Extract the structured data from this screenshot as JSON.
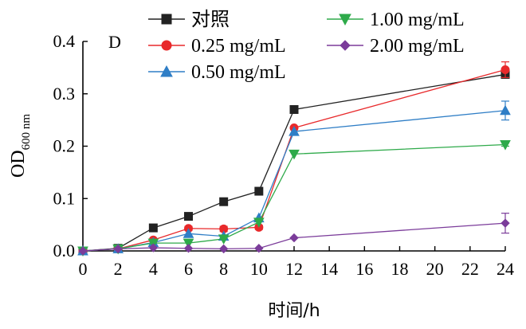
{
  "chart_data": {
    "type": "line",
    "panel_label": "D",
    "xlabel": "时间/h",
    "ylabel_main": "OD",
    "ylabel_sub": "600 nm",
    "xlim": [
      0,
      24
    ],
    "ylim": [
      0,
      0.4
    ],
    "x_ticks": [
      "0",
      "2",
      "4",
      "6",
      "8",
      "10",
      "12",
      "14",
      "16",
      "18",
      "20",
      "22",
      "24"
    ],
    "y_ticks": [
      "0.0",
      "0.1",
      "0.2",
      "0.3",
      "0.4"
    ],
    "legend_position": "top-center",
    "series": [
      {
        "name": "对照",
        "color": "#222222",
        "marker": "square",
        "x": [
          0,
          2,
          4,
          6,
          8,
          10,
          12,
          24
        ],
        "y": [
          0.0,
          0.005,
          0.044,
          0.066,
          0.094,
          0.114,
          0.27,
          0.337
        ],
        "err": [
          0,
          0,
          0,
          0,
          0,
          0,
          0,
          0.005
        ]
      },
      {
        "name": "0.25 mg/mL",
        "color": "#e8292b",
        "marker": "circle",
        "x": [
          0,
          2,
          4,
          6,
          8,
          10,
          12,
          24
        ],
        "y": [
          0.0,
          0.004,
          0.021,
          0.043,
          0.042,
          0.045,
          0.235,
          0.346
        ],
        "err": [
          0,
          0,
          0,
          0.004,
          0.005,
          0.004,
          0,
          0.015
        ]
      },
      {
        "name": "0.50 mg/mL",
        "color": "#2f7ec6",
        "marker": "triangle-up",
        "x": [
          0,
          2,
          4,
          6,
          8,
          10,
          12,
          24
        ],
        "y": [
          0.0,
          0.004,
          0.016,
          0.033,
          0.028,
          0.063,
          0.228,
          0.268
        ],
        "err": [
          0,
          0,
          0,
          0,
          0,
          0,
          0,
          0.018
        ]
      },
      {
        "name": "1.00 mg/mL",
        "color": "#2eaa4a",
        "marker": "triangle-down",
        "x": [
          0,
          2,
          4,
          6,
          8,
          10,
          12,
          24
        ],
        "y": [
          0.0,
          0.004,
          0.015,
          0.015,
          0.023,
          0.055,
          0.185,
          0.203
        ],
        "err": [
          0,
          0,
          0,
          0,
          0,
          0,
          0,
          0.003
        ]
      },
      {
        "name": "2.00 mg/mL",
        "color": "#7b3c9a",
        "marker": "diamond",
        "x": [
          0,
          2,
          4,
          6,
          8,
          10,
          12,
          24
        ],
        "y": [
          0.0,
          0.004,
          0.006,
          0.005,
          0.004,
          0.005,
          0.025,
          0.053
        ],
        "err": [
          0,
          0,
          0,
          0,
          0,
          0,
          0,
          0.019
        ]
      }
    ]
  }
}
